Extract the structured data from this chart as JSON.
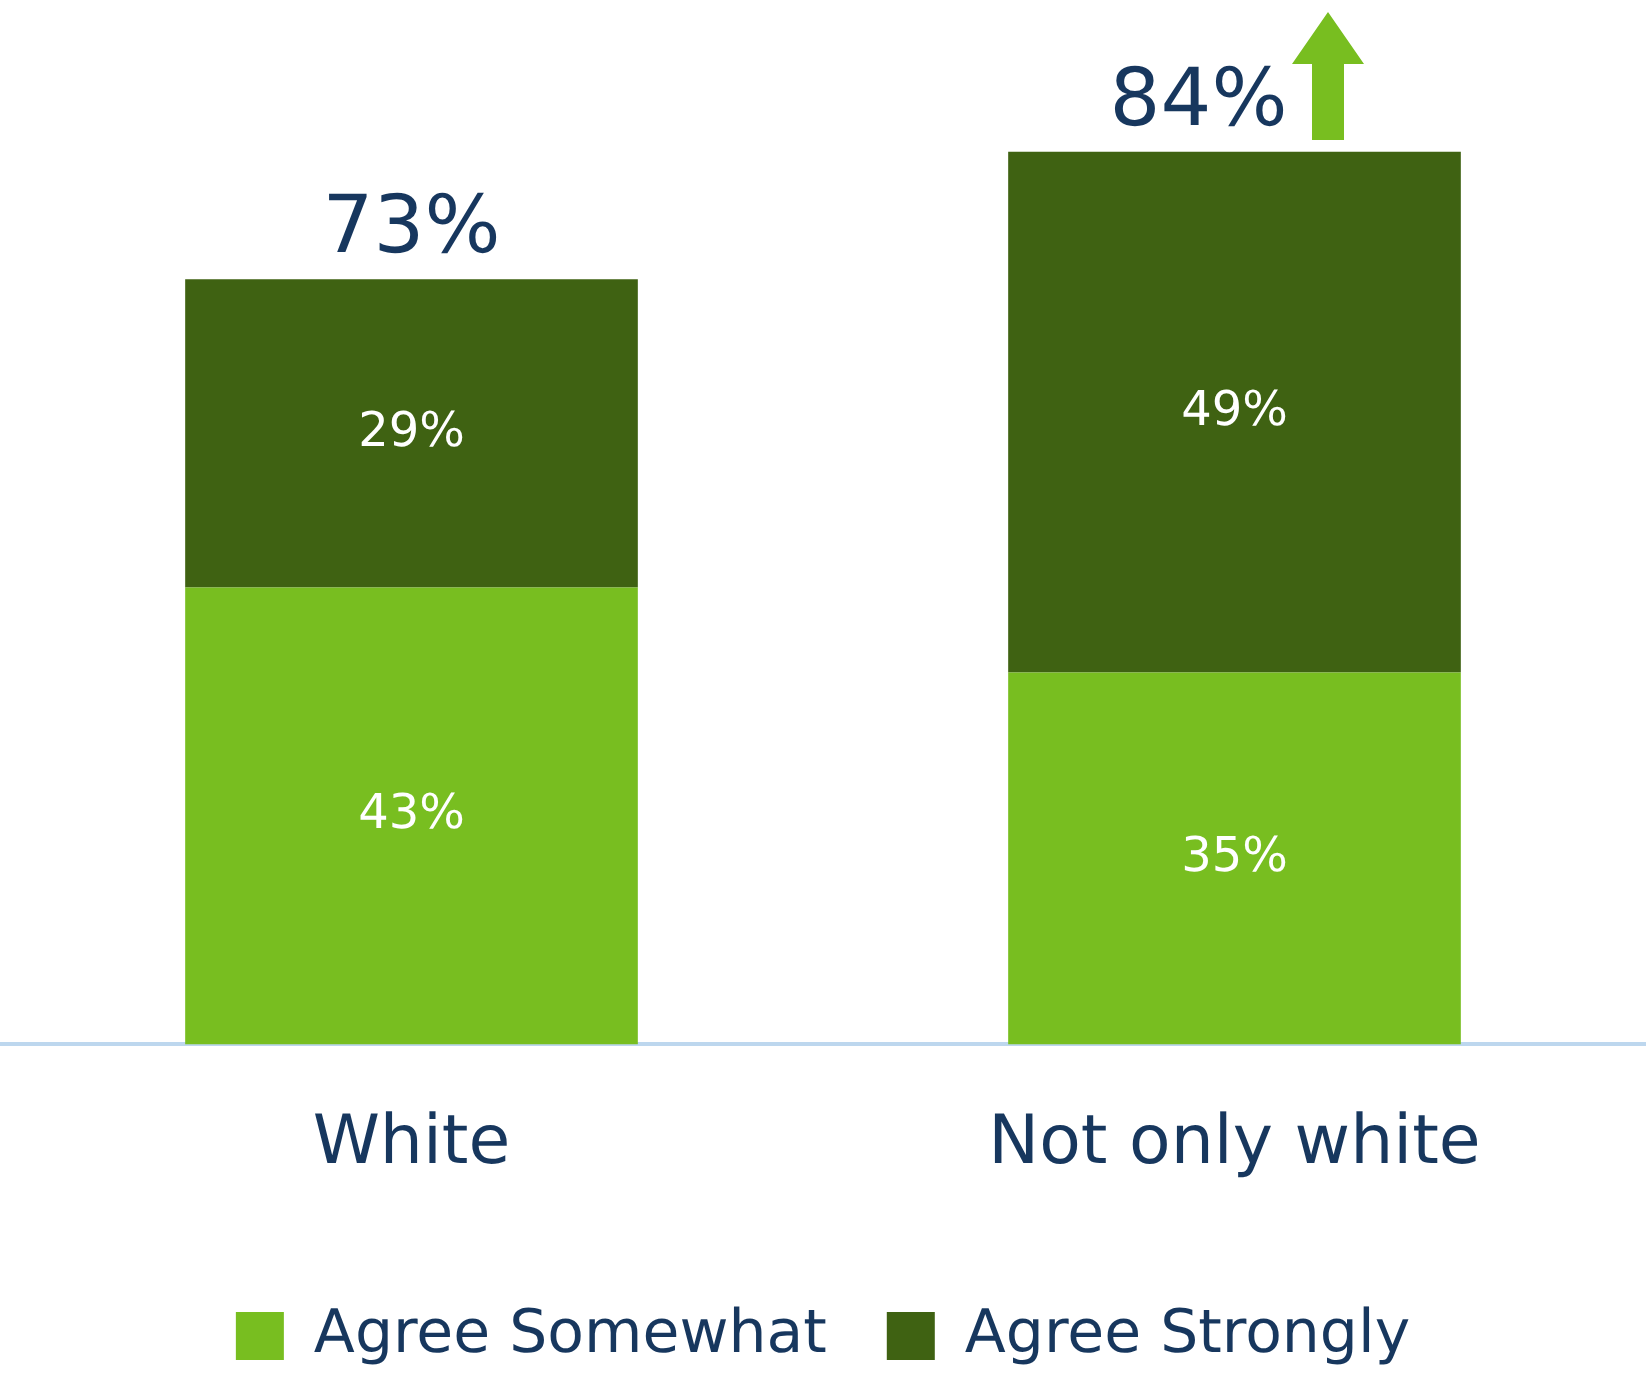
{
  "chart_data": {
    "type": "bar",
    "stacked": true,
    "categories": [
      "White",
      "Not only white"
    ],
    "series": [
      {
        "name": "Agree Somewhat",
        "color": "#78be20",
        "values": [
          43,
          35
        ],
        "value_labels": [
          "43%",
          "35%"
        ]
      },
      {
        "name": "Agree Strongly",
        "color": "#3f6212",
        "values": [
          29,
          49
        ],
        "value_labels": [
          "29%",
          "49%"
        ]
      }
    ],
    "totals": [
      "73%",
      "84%"
    ],
    "legend": "bottom",
    "grid": false
  }
}
